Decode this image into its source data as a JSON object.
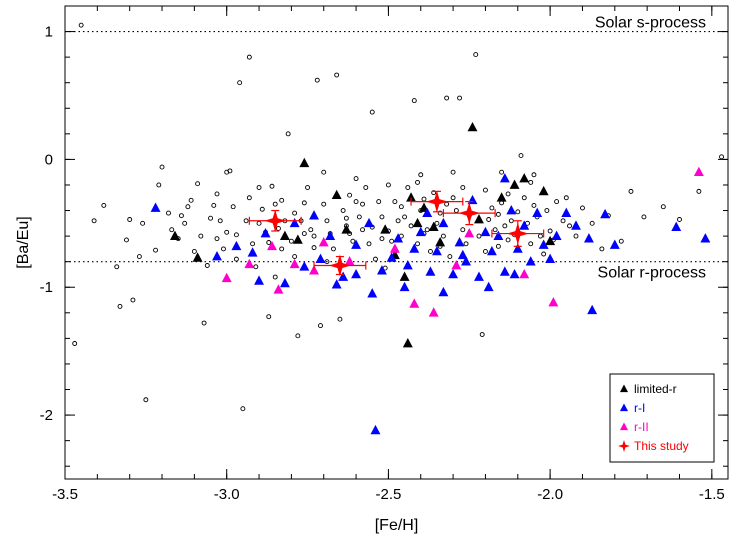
{
  "chart_data": {
    "type": "scatter",
    "xlabel": "[Fe/H]",
    "ylabel": "[Ba/Eu]",
    "xlim": [
      -3.5,
      -1.45
    ],
    "ylim": [
      -2.5,
      1.2
    ],
    "x_ticks": [
      -3.5,
      -3.0,
      -2.5,
      -2.0,
      -1.5
    ],
    "x_tick_labels": [
      "-3.5",
      "-3.0",
      "-2.5",
      "-2.0",
      "-1.5"
    ],
    "y_ticks": [
      -2,
      -1,
      0,
      1
    ],
    "y_tick_labels": [
      "-2",
      "-1",
      "0",
      "1"
    ],
    "reference_lines": [
      {
        "label": "Solar s-process",
        "y": 1.0
      },
      {
        "label": "Solar r-process",
        "y": -0.8
      }
    ],
    "legend": {
      "placement": "bottom-right",
      "entries": [
        {
          "label": "limited-r",
          "color": "#000000",
          "marker": "triangle"
        },
        {
          "label": "r-I",
          "color": "#0000ff",
          "marker": "triangle"
        },
        {
          "label": "r-II",
          "color": "#ff00cc",
          "marker": "triangle"
        },
        {
          "label": "This study",
          "color": "#ff0000",
          "marker": "star"
        }
      ]
    },
    "series": [
      {
        "name": "comparison",
        "marker": "circle",
        "color": "#000000",
        "points": [
          [
            -3.45,
            1.05
          ],
          [
            -3.47,
            -1.44
          ],
          [
            -3.41,
            -0.48
          ],
          [
            -3.38,
            -0.36
          ],
          [
            -3.34,
            -0.84
          ],
          [
            -3.33,
            -1.15
          ],
          [
            -3.31,
            -0.63
          ],
          [
            -3.3,
            -0.47
          ],
          [
            -3.29,
            -1.1
          ],
          [
            -3.27,
            -0.76
          ],
          [
            -3.26,
            -0.5
          ],
          [
            -3.25,
            -1.88
          ],
          [
            -3.22,
            -0.71
          ],
          [
            -3.2,
            -0.06
          ],
          [
            -3.18,
            -0.42
          ],
          [
            -3.17,
            -0.55
          ],
          [
            -3.15,
            -0.62
          ],
          [
            -3.13,
            -0.5
          ],
          [
            -3.12,
            -0.37
          ],
          [
            -3.11,
            -0.32
          ],
          [
            -3.1,
            -0.72
          ],
          [
            -3.09,
            -0.19
          ],
          [
            -3.08,
            -0.6
          ],
          [
            -3.07,
            -1.28
          ],
          [
            -3.06,
            -0.83
          ],
          [
            -3.05,
            -0.46
          ],
          [
            -3.04,
            -0.36
          ],
          [
            -3.03,
            -0.27
          ],
          [
            -3.02,
            -0.48
          ],
          [
            -3.01,
            -0.7
          ],
          [
            -3.0,
            -0.57
          ],
          [
            -2.99,
            -0.09
          ],
          [
            -2.98,
            -0.37
          ],
          [
            -2.97,
            -0.59
          ],
          [
            -2.96,
            0.6
          ],
          [
            -2.95,
            -1.95
          ],
          [
            -2.94,
            -0.48
          ],
          [
            -2.93,
            -0.3
          ],
          [
            -2.92,
            -0.66
          ],
          [
            -2.91,
            -0.84
          ],
          [
            -2.9,
            -0.5
          ],
          [
            -2.89,
            -0.39
          ],
          [
            -2.88,
            -0.57
          ],
          [
            -2.87,
            -1.23
          ],
          [
            -2.86,
            -0.21
          ],
          [
            -2.85,
            -0.92
          ],
          [
            -2.84,
            -0.54
          ],
          [
            -2.83,
            -0.32
          ],
          [
            -2.82,
            -0.48
          ],
          [
            -2.81,
            0.2
          ],
          [
            -2.8,
            -0.64
          ],
          [
            -2.79,
            -0.76
          ],
          [
            -2.78,
            -1.38
          ],
          [
            -2.77,
            -0.48
          ],
          [
            -2.76,
            -0.58
          ],
          [
            -2.75,
            -0.22
          ],
          [
            -2.74,
            -0.55
          ],
          [
            -2.73,
            -0.69
          ],
          [
            -2.72,
            0.62
          ],
          [
            -2.71,
            -1.3
          ],
          [
            -2.7,
            -0.35
          ],
          [
            -2.69,
            -0.48
          ],
          [
            -2.68,
            -0.58
          ],
          [
            -2.67,
            -0.7
          ],
          [
            -2.66,
            0.66
          ],
          [
            -2.65,
            -1.25
          ],
          [
            -2.64,
            -0.4
          ],
          [
            -2.63,
            -0.52
          ],
          [
            -2.62,
            -0.58
          ],
          [
            -2.61,
            -0.64
          ],
          [
            -2.6,
            -0.33
          ],
          [
            -2.59,
            -0.45
          ],
          [
            -2.58,
            -0.55
          ],
          [
            -2.57,
            -0.22
          ],
          [
            -2.56,
            -0.66
          ],
          [
            -2.55,
            0.37
          ],
          [
            -2.54,
            -0.78
          ],
          [
            -2.53,
            -0.33
          ],
          [
            -2.52,
            -0.45
          ],
          [
            -2.51,
            -0.85
          ],
          [
            -2.5,
            -0.56
          ],
          [
            -2.49,
            -0.64
          ],
          [
            -2.48,
            -0.33
          ],
          [
            -2.47,
            -0.48
          ],
          [
            -2.46,
            -0.6
          ],
          [
            -2.45,
            -0.45
          ],
          [
            -2.44,
            -0.22
          ],
          [
            -2.43,
            -0.52
          ],
          [
            -2.42,
            0.46
          ],
          [
            -2.41,
            -0.66
          ],
          [
            -2.4,
            -0.4
          ],
          [
            -2.39,
            -0.31
          ],
          [
            -2.38,
            -0.55
          ],
          [
            -2.37,
            -0.72
          ],
          [
            -2.36,
            -0.26
          ],
          [
            -2.35,
            -0.5
          ],
          [
            -2.34,
            -0.42
          ],
          [
            -2.33,
            -0.6
          ],
          [
            -2.32,
            0.48
          ],
          [
            -2.31,
            -0.76
          ],
          [
            -2.3,
            -0.3
          ],
          [
            -2.29,
            -0.4
          ],
          [
            -2.28,
            0.48
          ],
          [
            -2.27,
            -0.55
          ],
          [
            -2.26,
            -0.66
          ],
          [
            -2.25,
            -0.44
          ],
          [
            -2.24,
            -0.33
          ],
          [
            -2.23,
            0.82
          ],
          [
            -2.22,
            -0.6
          ],
          [
            -2.21,
            -1.37
          ],
          [
            -2.2,
            -0.24
          ],
          [
            -2.19,
            -0.47
          ],
          [
            -2.18,
            -0.38
          ],
          [
            -2.17,
            -0.55
          ],
          [
            -2.16,
            -0.68
          ],
          [
            -2.15,
            -0.34
          ],
          [
            -2.14,
            -0.52
          ],
          [
            -2.13,
            -0.27
          ],
          [
            -2.12,
            -0.48
          ],
          [
            -2.11,
            -0.59
          ],
          [
            -2.1,
            -0.41
          ],
          [
            -2.09,
            0.03
          ],
          [
            -2.08,
            -0.3
          ],
          [
            -2.07,
            -0.5
          ],
          [
            -2.06,
            -0.66
          ],
          [
            -2.05,
            -0.36
          ],
          [
            -2.04,
            -0.45
          ],
          [
            -2.03,
            -0.6
          ],
          [
            -2.02,
            -0.74
          ],
          [
            -2.01,
            -0.4
          ],
          [
            -2.0,
            -0.56
          ],
          [
            -1.98,
            -0.33
          ],
          [
            -1.96,
            -0.48
          ],
          [
            -1.94,
            -0.52
          ],
          [
            -1.92,
            -0.6
          ],
          [
            -1.9,
            -0.38
          ],
          [
            -1.87,
            -0.5
          ],
          [
            -1.84,
            -0.7
          ],
          [
            -1.82,
            -0.44
          ],
          [
            -1.78,
            -0.64
          ],
          [
            -1.75,
            -0.25
          ],
          [
            -1.71,
            -0.45
          ],
          [
            -1.65,
            -0.37
          ],
          [
            -1.6,
            -0.47
          ],
          [
            -1.54,
            -0.25
          ],
          [
            -1.47,
            0.02
          ],
          [
            -3.03,
            -0.62
          ],
          [
            -2.97,
            -0.78
          ],
          [
            -2.9,
            -0.22
          ],
          [
            -2.83,
            -0.7
          ],
          [
            -2.76,
            -0.34
          ],
          [
            -2.69,
            -0.8
          ],
          [
            -2.62,
            -0.28
          ],
          [
            -2.55,
            -0.53
          ],
          [
            -2.48,
            -0.72
          ],
          [
            -2.41,
            -0.18
          ],
          [
            -2.34,
            -0.68
          ],
          [
            -2.27,
            -0.22
          ],
          [
            -2.2,
            -0.72
          ],
          [
            -2.13,
            -0.63
          ],
          [
            -2.06,
            -0.18
          ],
          [
            -1.99,
            -0.63
          ],
          [
            -2.93,
            0.8
          ],
          [
            -2.79,
            -0.42
          ],
          [
            -2.63,
            -0.46
          ],
          [
            -2.58,
            -0.35
          ],
          [
            -2.52,
            -0.62
          ],
          [
            -2.46,
            -0.37
          ],
          [
            -2.39,
            -0.58
          ],
          [
            -2.32,
            -0.35
          ],
          [
            -2.16,
            -0.43
          ],
          [
            -2.87,
            -0.65
          ],
          [
            -2.73,
            -0.6
          ],
          [
            -3.14,
            -0.44
          ],
          [
            -3.21,
            -0.2
          ],
          [
            -3.0,
            -0.1
          ],
          [
            -2.85,
            -0.35
          ],
          [
            -2.7,
            -0.1
          ],
          [
            -2.6,
            -0.15
          ],
          [
            -2.5,
            -0.2
          ],
          [
            -2.4,
            -0.12
          ],
          [
            -2.3,
            -0.1
          ],
          [
            -2.15,
            -0.1
          ],
          [
            -2.05,
            -0.12
          ],
          [
            -1.95,
            -0.3
          ]
        ]
      },
      {
        "name": "limited-r",
        "marker": "triangle",
        "color": "#000000",
        "points": [
          [
            -3.16,
            -0.6
          ],
          [
            -3.09,
            -0.77
          ],
          [
            -2.82,
            -0.6
          ],
          [
            -2.78,
            -0.63
          ],
          [
            -2.76,
            -0.03
          ],
          [
            -2.66,
            -0.28
          ],
          [
            -2.63,
            -0.55
          ],
          [
            -2.51,
            -0.55
          ],
          [
            -2.45,
            -0.92
          ],
          [
            -2.44,
            -1.44
          ],
          [
            -2.43,
            -0.3
          ],
          [
            -2.41,
            -0.5
          ],
          [
            -2.36,
            -0.53
          ],
          [
            -2.34,
            -0.65
          ],
          [
            -2.24,
            0.25
          ],
          [
            -2.22,
            -0.47
          ],
          [
            -2.15,
            -0.3
          ],
          [
            -2.11,
            -0.2
          ],
          [
            -2.08,
            -0.15
          ],
          [
            -2.02,
            -0.25
          ],
          [
            -2.0,
            -0.64
          ],
          [
            -2.48,
            -0.75
          ],
          [
            -2.39,
            -0.38
          ]
        ]
      },
      {
        "name": "r-I",
        "marker": "triangle",
        "color": "#0000ff",
        "points": [
          [
            -3.22,
            -0.38
          ],
          [
            -3.03,
            -0.76
          ],
          [
            -2.97,
            -0.68
          ],
          [
            -2.92,
            -0.73
          ],
          [
            -2.88,
            -0.58
          ],
          [
            -2.82,
            -0.97
          ],
          [
            -2.79,
            -0.5
          ],
          [
            -2.76,
            -0.84
          ],
          [
            -2.73,
            -0.44
          ],
          [
            -2.71,
            -0.78
          ],
          [
            -2.68,
            -0.6
          ],
          [
            -2.64,
            -0.92
          ],
          [
            -2.6,
            -0.67
          ],
          [
            -2.56,
            -0.5
          ],
          [
            -2.54,
            -2.12
          ],
          [
            -2.52,
            -0.87
          ],
          [
            -2.49,
            -0.77
          ],
          [
            -2.47,
            -0.62
          ],
          [
            -2.44,
            -0.83
          ],
          [
            -2.42,
            -0.7
          ],
          [
            -2.4,
            -0.57
          ],
          [
            -2.37,
            -0.88
          ],
          [
            -2.35,
            -0.72
          ],
          [
            -2.33,
            -0.5
          ],
          [
            -2.3,
            -0.9
          ],
          [
            -2.28,
            -0.65
          ],
          [
            -2.26,
            -0.8
          ],
          [
            -2.24,
            -0.32
          ],
          [
            -2.22,
            -0.92
          ],
          [
            -2.2,
            -0.57
          ],
          [
            -2.18,
            -0.72
          ],
          [
            -2.16,
            -0.6
          ],
          [
            -2.14,
            -0.88
          ],
          [
            -2.12,
            -0.4
          ],
          [
            -2.1,
            -0.7
          ],
          [
            -2.08,
            -0.52
          ],
          [
            -2.06,
            -0.8
          ],
          [
            -2.04,
            -0.42
          ],
          [
            -2.02,
            -0.67
          ],
          [
            -2.0,
            -0.78
          ],
          [
            -1.98,
            -0.6
          ],
          [
            -1.95,
            -0.42
          ],
          [
            -1.92,
            -0.52
          ],
          [
            -1.88,
            -0.62
          ],
          [
            -1.87,
            -1.18
          ],
          [
            -1.83,
            -0.43
          ],
          [
            -1.8,
            -0.67
          ],
          [
            -1.61,
            -0.53
          ],
          [
            -1.52,
            -0.62
          ],
          [
            -2.55,
            -1.05
          ],
          [
            -2.33,
            -1.04
          ],
          [
            -2.19,
            -1.0
          ],
          [
            -2.14,
            -0.15
          ],
          [
            -2.38,
            -0.42
          ],
          [
            -2.27,
            -0.75
          ],
          [
            -2.45,
            -1.0
          ],
          [
            -2.6,
            -0.9
          ],
          [
            -2.9,
            -0.95
          ],
          [
            -2.66,
            -0.98
          ],
          [
            -2.11,
            -0.9
          ]
        ]
      },
      {
        "name": "r-II",
        "marker": "triangle",
        "color": "#ff00cc",
        "points": [
          [
            -3.0,
            -0.93
          ],
          [
            -2.93,
            -0.82
          ],
          [
            -2.86,
            -0.68
          ],
          [
            -2.84,
            -1.02
          ],
          [
            -2.79,
            -0.82
          ],
          [
            -2.73,
            -0.87
          ],
          [
            -2.7,
            -0.65
          ],
          [
            -2.62,
            -0.8
          ],
          [
            -2.48,
            -0.7
          ],
          [
            -2.42,
            -1.13
          ],
          [
            -2.36,
            -1.2
          ],
          [
            -2.29,
            -0.83
          ],
          [
            -2.25,
            -0.58
          ],
          [
            -2.08,
            -0.9
          ],
          [
            -1.99,
            -1.12
          ],
          [
            -1.54,
            -0.1
          ]
        ]
      },
      {
        "name": "This study",
        "marker": "star",
        "color": "#ff0000",
        "points": [
          [
            -2.85,
            -0.48
          ],
          [
            -2.65,
            -0.83
          ],
          [
            -2.35,
            -0.33
          ],
          [
            -2.25,
            -0.42
          ],
          [
            -2.1,
            -0.58
          ]
        ],
        "x_err": [
          0.08,
          0.08,
          0.08,
          0.08,
          0.08
        ],
        "y_err": [
          0.08,
          0.07,
          0.08,
          0.09,
          0.1
        ]
      }
    ]
  }
}
